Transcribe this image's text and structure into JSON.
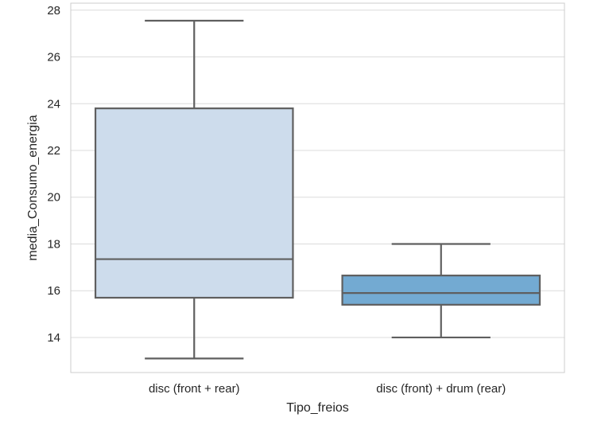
{
  "chart_data": {
    "type": "boxplot",
    "title": "",
    "xlabel": "Tipo_freios",
    "ylabel": "media_Consumo_energia",
    "ylim": [
      12.5,
      28.3
    ],
    "yticks": [
      14,
      16,
      18,
      20,
      22,
      24,
      26,
      28
    ],
    "grid": "horizontal",
    "categories": [
      "disc (front + rear)",
      "disc (front) + drum (rear)"
    ],
    "boxes": [
      {
        "category": "disc (front + rear)",
        "whisker_low": 13.1,
        "q1": 15.7,
        "median": 17.35,
        "q3": 23.8,
        "whisker_high": 27.55,
        "color": "#cddcec"
      },
      {
        "category": "disc (front) + drum (rear)",
        "whisker_low": 14.0,
        "q1": 15.4,
        "median": 15.9,
        "q3": 16.65,
        "whisker_high": 18.0,
        "color": "#73aad2"
      }
    ],
    "colors": {
      "edge": "#5f5f5f",
      "grid": "#dcdcdc",
      "frame": "#cccccc"
    }
  }
}
